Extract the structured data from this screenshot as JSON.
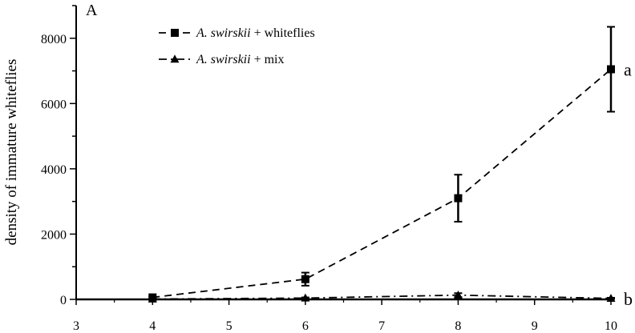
{
  "chart_data": {
    "type": "line",
    "panel_label": "A",
    "ylabel": "density of immature whiteflies",
    "xlabel": "",
    "xlim": [
      3,
      10
    ],
    "ylim": [
      0,
      9000
    ],
    "x_ticks": [
      3,
      4,
      5,
      6,
      7,
      8,
      9,
      10
    ],
    "y_ticks": [
      0,
      2000,
      4000,
      6000,
      8000
    ],
    "legend_position": "top-center",
    "series": [
      {
        "name_italic": "A. swirskii",
        "name_rest": " + whiteflies",
        "marker": "square",
        "dash": "dashed",
        "x": [
          4,
          6,
          8,
          10
        ],
        "y": [
          60,
          620,
          3100,
          7050
        ],
        "error": [
          30,
          200,
          720,
          1300
        ],
        "significance": "a"
      },
      {
        "name_italic": "A. swirskii",
        "name_rest": " + mix",
        "marker": "triangle",
        "dash": "dashdot",
        "x": [
          4,
          6,
          8,
          10
        ],
        "y": [
          10,
          40,
          130,
          30
        ],
        "error": [
          10,
          20,
          60,
          20
        ],
        "significance": "b"
      }
    ]
  }
}
